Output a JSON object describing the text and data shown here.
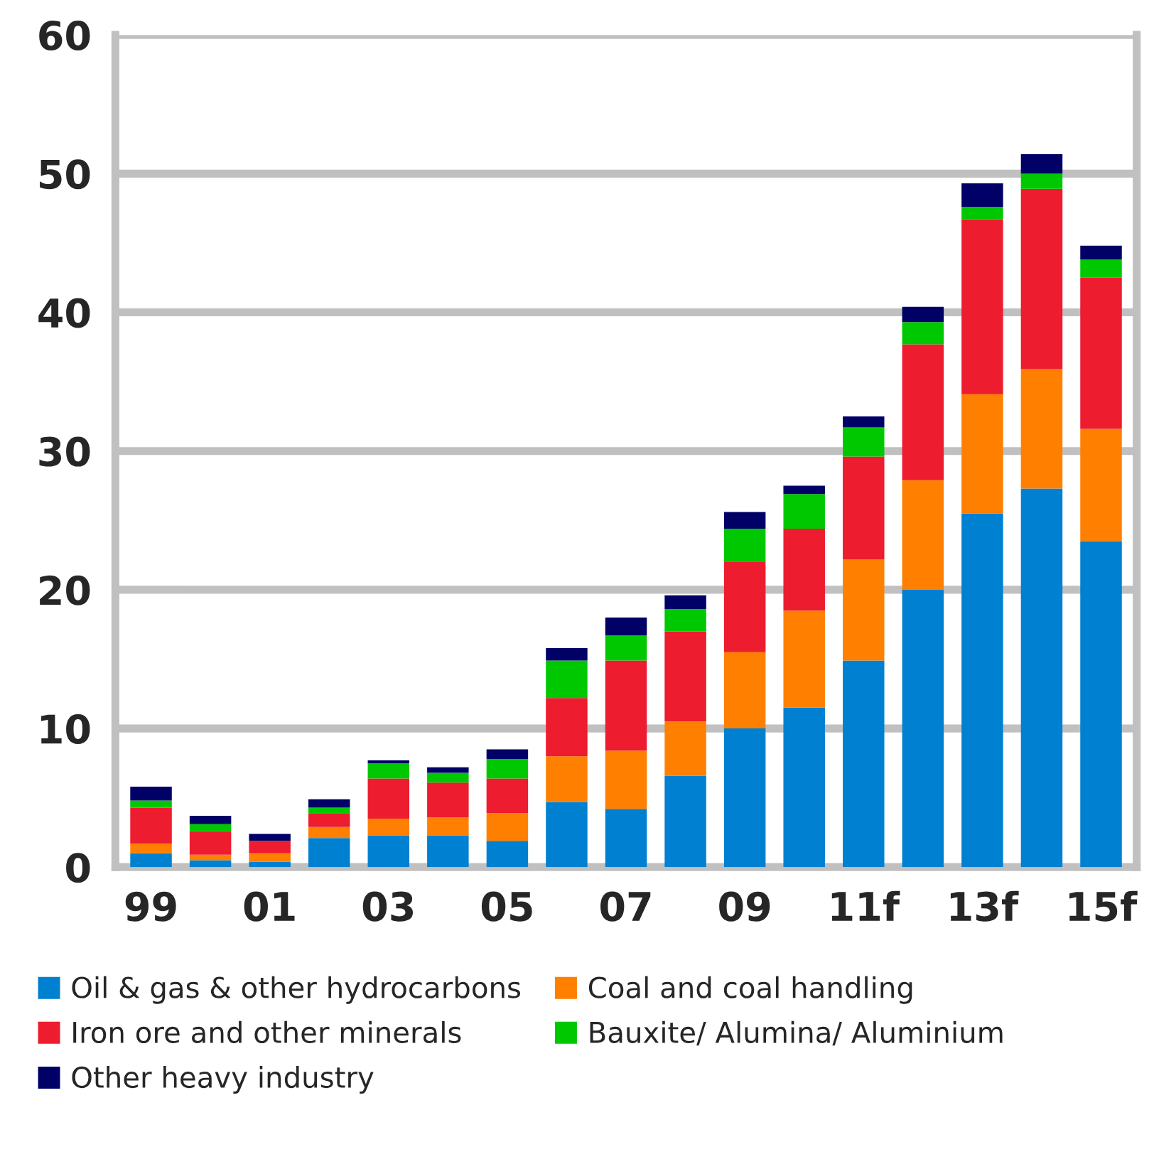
{
  "chart_data": {
    "type": "bar",
    "stacked": true,
    "categories": [
      "99",
      null,
      "01",
      null,
      "03",
      null,
      "05",
      null,
      "07",
      null,
      "09",
      null,
      "11f",
      null,
      "13f",
      null,
      "15f"
    ],
    "series": [
      {
        "name": "Oil & gas & other hydrocarbons",
        "color": "#0080d0",
        "values": [
          1.0,
          0.5,
          0.4,
          2.1,
          2.3,
          2.3,
          1.9,
          4.7,
          4.2,
          6.6,
          10.0,
          11.5,
          14.9,
          20.0,
          25.5,
          27.3,
          23.5
        ]
      },
      {
        "name": "Coal and coal handling",
        "color": "#ff8000",
        "values": [
          0.7,
          0.4,
          0.6,
          0.8,
          1.2,
          1.3,
          2.0,
          3.3,
          4.2,
          3.9,
          5.5,
          7.0,
          7.3,
          7.9,
          8.6,
          8.6,
          8.1
        ]
      },
      {
        "name": "Iron ore and other minerals",
        "color": "#ed1c2e",
        "values": [
          2.6,
          1.7,
          0.9,
          1.0,
          2.9,
          2.5,
          2.5,
          4.2,
          6.5,
          6.5,
          6.5,
          5.9,
          7.4,
          9.8,
          12.6,
          13.0,
          10.9
        ]
      },
      {
        "name": "Bauxite/ Alumina/ Aluminium",
        "color": "#00c800",
        "values": [
          0.5,
          0.5,
          0,
          0.4,
          1.1,
          0.7,
          1.4,
          2.7,
          1.8,
          1.6,
          2.4,
          2.5,
          2.1,
          1.6,
          0.9,
          1.1,
          1.3
        ]
      },
      {
        "name": "Other heavy industry",
        "color": "#000066",
        "values": [
          1.0,
          0.6,
          0.5,
          0.6,
          0.2,
          0.4,
          0.7,
          0.9,
          1.3,
          1.0,
          1.2,
          0.6,
          0.8,
          1.1,
          1.7,
          1.4,
          1.0
        ]
      }
    ],
    "ylim": [
      0,
      60
    ],
    "yticks": [
      0,
      10,
      20,
      30,
      40,
      50,
      60
    ],
    "grid": "y",
    "legend": "bottom"
  }
}
